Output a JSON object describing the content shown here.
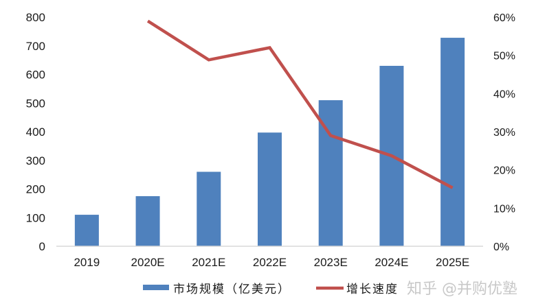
{
  "chart_data": {
    "type": "bar+line",
    "title": "",
    "categories": [
      "2019",
      "2020E",
      "2021E",
      "2022E",
      "2023E",
      "2024E",
      "2025E"
    ],
    "series": [
      {
        "name": "市场规模（亿美元）",
        "type": "bar",
        "axis": "left",
        "color": "#4F81BD",
        "values": [
          110,
          175,
          260,
          397,
          510,
          630,
          728
        ]
      },
      {
        "name": "增长速度",
        "type": "line",
        "axis": "right",
        "color": "#C0504D",
        "values": [
          null,
          0.59,
          0.488,
          0.52,
          0.29,
          0.237,
          0.153
        ]
      }
    ],
    "left_axis": {
      "ylim": [
        0,
        800
      ],
      "ticks": [
        0,
        100,
        200,
        300,
        400,
        500,
        600,
        700,
        800
      ],
      "tick_labels": [
        "0",
        "100",
        "200",
        "300",
        "400",
        "500",
        "600",
        "700",
        "800"
      ]
    },
    "right_axis": {
      "ylim": [
        0,
        0.6
      ],
      "ticks": [
        0,
        0.1,
        0.2,
        0.3,
        0.4,
        0.5,
        0.6
      ],
      "tick_labels": [
        "0%",
        "10%",
        "20%",
        "30%",
        "40%",
        "50%",
        "60%"
      ]
    },
    "xlabel": "",
    "ylabel": "",
    "grid": false,
    "legend_position": "bottom"
  },
  "legend": {
    "bar_label": "市场规模（亿美元）",
    "line_label": "增长速度"
  },
  "watermark": "知乎 @并购优塾",
  "colors": {
    "bar": "#4F81BD",
    "line": "#C0504D",
    "axis": "#d9d9d9"
  }
}
